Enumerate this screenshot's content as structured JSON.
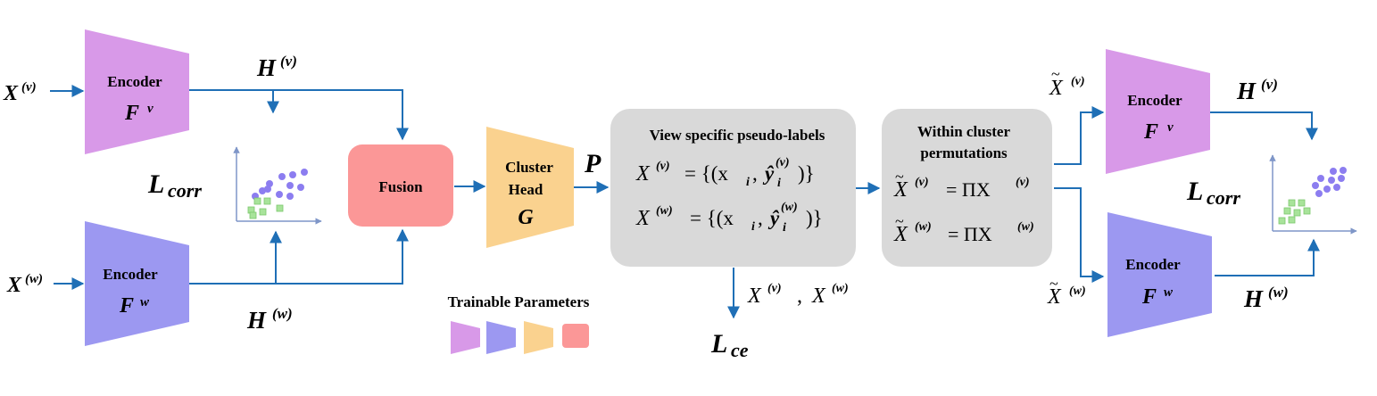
{
  "left": {
    "input_v": "X",
    "input_w": "X",
    "sup_v": "(v)",
    "sup_w": "(w)",
    "encoder_v": {
      "title": "Encoder",
      "symbol": "F",
      "sup": "v",
      "color": "#d899e8"
    },
    "encoder_w": {
      "title": "Encoder",
      "symbol": "F",
      "sup": "w",
      "color": "#9c98f1"
    },
    "h_v": "H",
    "h_w": "H",
    "loss_corr": "L",
    "loss_corr_sub": "corr",
    "fusion": {
      "label": "Fusion",
      "color": "#fb9797"
    }
  },
  "cluster_head": {
    "line1": "Cluster",
    "line2": "Head",
    "symbol": "G",
    "color": "#fad28f"
  },
  "p_label": "P",
  "pseudo_box": {
    "title": "View specific pseudo-labels",
    "eq_v_lhs": "X",
    "eq_v_rhs": "= {(x",
    "eq_w_lhs": "X",
    "eq_w_rhs": "= {(x",
    "sub_i": "i",
    "y_hat": "ŷ",
    "close": ")}",
    "color": "#d9d9d9"
  },
  "perm_box": {
    "title_line1": "Within cluster",
    "title_line2": "permutations",
    "eq_lhs": "X",
    "eq_mid": "= ΠX",
    "color": "#d9d9d9"
  },
  "below_pseudo": {
    "text": "X",
    "sep": ",",
    "loss": "L",
    "loss_sub": "ce"
  },
  "legend": {
    "title": "Trainable Parameters",
    "swatches": [
      "#d899e8",
      "#9c98f1",
      "#fad28f",
      "#fb9797"
    ]
  },
  "right": {
    "input_v": "X",
    "input_w": "X",
    "encoder_v": {
      "title": "Encoder",
      "symbol": "F",
      "sup": "v"
    },
    "encoder_w": {
      "title": "Encoder",
      "symbol": "F",
      "sup": "w"
    },
    "h_v": "H",
    "h_w": "H",
    "loss_corr": "L",
    "loss_corr_sub": "corr"
  },
  "colors": {
    "arrow": "#1f6fb6",
    "dot": "#8c7df0",
    "square": "#a8e39a",
    "axis": "#7f96c8"
  }
}
